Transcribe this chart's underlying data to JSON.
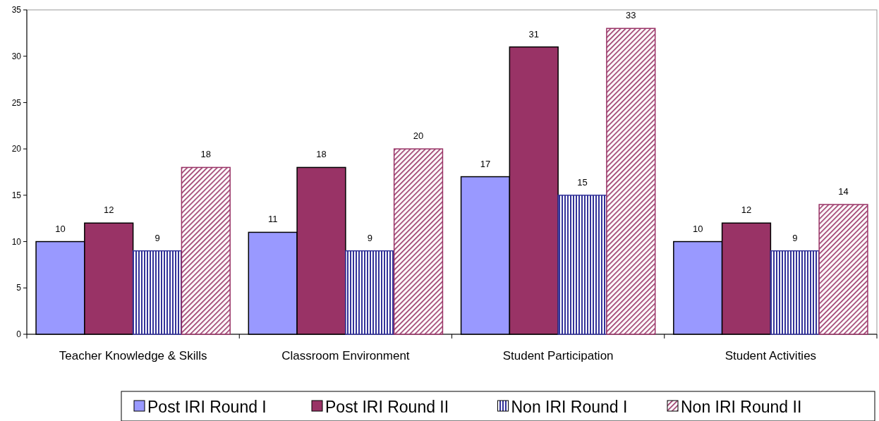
{
  "chart_data": {
    "type": "bar",
    "categories": [
      "Teacher Knowledge & Skills",
      "Classroom Environment",
      "Student Participation",
      "Student Activities"
    ],
    "series": [
      {
        "name": "Post IRI Round I",
        "color": "#9999ff",
        "values": [
          10,
          11,
          17,
          10
        ]
      },
      {
        "name": "Post IRI Round II",
        "color": "#993366",
        "values": [
          12,
          18,
          31,
          12
        ]
      },
      {
        "name": "Non IRI Round I",
        "color": "#333399",
        "values": [
          9,
          9,
          15,
          9
        ]
      },
      {
        "name": "Non IRI Round II",
        "color": "#993366",
        "values": [
          18,
          20,
          33,
          14
        ]
      }
    ],
    "ylim": [
      0,
      35
    ],
    "yticks": [
      0,
      5,
      10,
      15,
      20,
      25,
      30,
      35
    ],
    "grid": false,
    "legend": "bottom",
    "data_labels": true
  }
}
